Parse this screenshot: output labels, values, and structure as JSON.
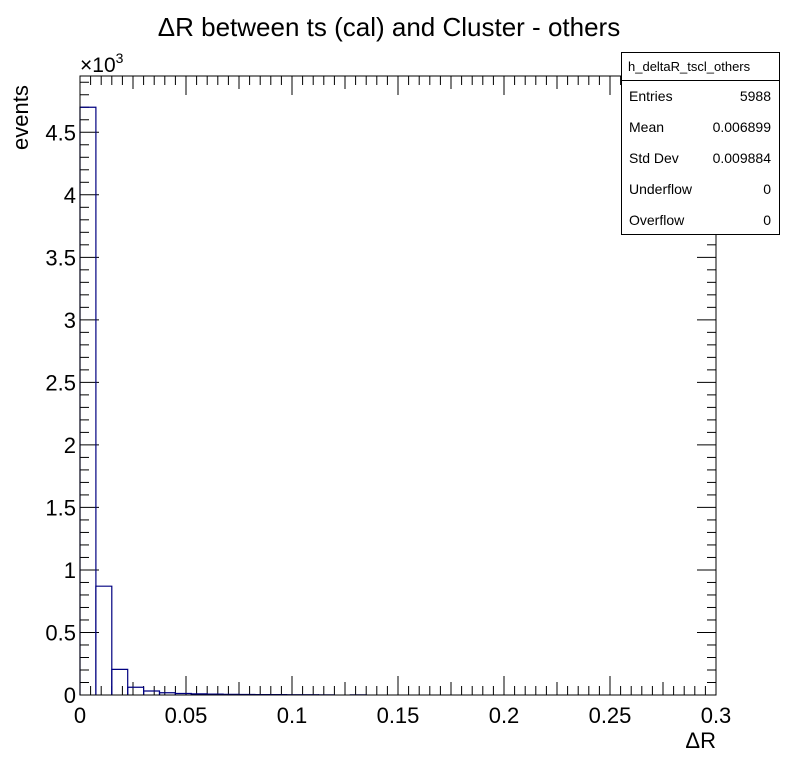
{
  "chart_data": {
    "type": "bar",
    "title": "ΔR between ts (cal) and Cluster - others",
    "xlabel": "ΔR",
    "ylabel": "events",
    "y_multiplier": "×10",
    "y_multiplier_exp": "3",
    "xlim": [
      0,
      0.3
    ],
    "ylim": [
      0,
      4950
    ],
    "x_ticks": [
      0,
      0.05,
      0.1,
      0.15,
      0.2,
      0.25,
      0.3
    ],
    "x_tick_labels": [
      "0",
      "0.05",
      "0.1",
      "0.15",
      "0.2",
      "0.25",
      "0.3"
    ],
    "y_ticks": [
      0,
      500,
      1000,
      1500,
      2000,
      2500,
      3000,
      3500,
      4000,
      4500
    ],
    "y_tick_labels": [
      "0",
      "0.5",
      "1",
      "1.5",
      "2",
      "2.5",
      "3",
      "3.5",
      "4",
      "4.5"
    ],
    "bin_width": 0.0075,
    "bin_edges_start": 0,
    "values": [
      4700,
      870,
      205,
      62,
      32,
      18,
      12,
      9,
      7,
      5,
      4,
      3,
      3,
      2,
      2,
      1,
      0,
      1,
      0,
      0,
      0,
      0,
      0,
      0,
      0,
      0,
      0,
      0,
      0,
      0,
      0,
      0,
      0,
      0,
      0,
      0,
      0,
      0,
      0,
      0
    ],
    "line_color": "#000080"
  },
  "stats": {
    "name": "h_deltaR_tscl_others",
    "rows": [
      {
        "label": "Entries",
        "value": "5988"
      },
      {
        "label": "Mean",
        "value": "0.006899"
      },
      {
        "label": "Std Dev",
        "value": "0.009884"
      },
      {
        "label": "Underflow",
        "value": "0"
      },
      {
        "label": "Overflow",
        "value": "0"
      }
    ]
  }
}
